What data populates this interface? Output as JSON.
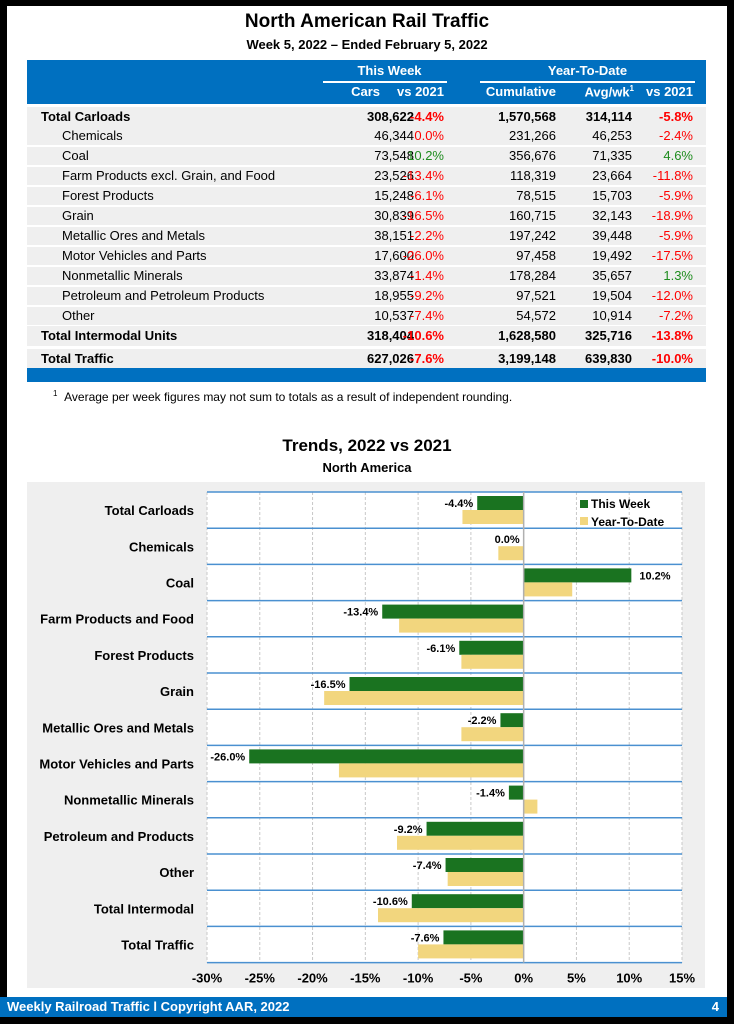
{
  "header": {
    "title": "North American Rail Traffic",
    "subtitle": "Week 5, 2022 – Ended February 5, 2022"
  },
  "table": {
    "group_this_week": "This Week",
    "group_ytd": "Year-To-Date",
    "columns": [
      "Cars",
      "vs 2021",
      "Cumulative",
      "Avg/wk",
      "vs 2021"
    ],
    "avg_footnote_marker": "1",
    "rows": [
      {
        "label": "Total Carloads",
        "bold": true,
        "cars": "308,622",
        "vs": "-4.4%",
        "cum": "1,570,568",
        "avg": "314,114",
        "ytdvs": "-5.8%"
      },
      {
        "label": "Chemicals",
        "bold": false,
        "cars": "46,344",
        "vs": "0.0%",
        "cum": "231,266",
        "avg": "46,253",
        "ytdvs": "-2.4%"
      },
      {
        "label": "Coal",
        "bold": false,
        "cars": "73,548",
        "vs": "10.2%",
        "cum": "356,676",
        "avg": "71,335",
        "ytdvs": "4.6%"
      },
      {
        "label": "Farm Products excl. Grain, and Food",
        "bold": false,
        "cars": "23,526",
        "vs": "-13.4%",
        "cum": "118,319",
        "avg": "23,664",
        "ytdvs": "-11.8%"
      },
      {
        "label": "Forest Products",
        "bold": false,
        "cars": "15,248",
        "vs": "-6.1%",
        "cum": "78,515",
        "avg": "15,703",
        "ytdvs": "-5.9%"
      },
      {
        "label": "Grain",
        "bold": false,
        "cars": "30,839",
        "vs": "-16.5%",
        "cum": "160,715",
        "avg": "32,143",
        "ytdvs": "-18.9%"
      },
      {
        "label": "Metallic Ores and Metals",
        "bold": false,
        "cars": "38,151",
        "vs": "-2.2%",
        "cum": "197,242",
        "avg": "39,448",
        "ytdvs": "-5.9%"
      },
      {
        "label": "Motor Vehicles and Parts",
        "bold": false,
        "cars": "17,600",
        "vs": "-26.0%",
        "cum": "97,458",
        "avg": "19,492",
        "ytdvs": "-17.5%"
      },
      {
        "label": "Nonmetallic Minerals",
        "bold": false,
        "cars": "33,874",
        "vs": "-1.4%",
        "cum": "178,284",
        "avg": "35,657",
        "ytdvs": "1.3%"
      },
      {
        "label": "Petroleum and Petroleum Products",
        "bold": false,
        "cars": "18,955",
        "vs": "-9.2%",
        "cum": "97,521",
        "avg": "19,504",
        "ytdvs": "-12.0%"
      },
      {
        "label": "Other",
        "bold": false,
        "cars": "10,537",
        "vs": "-7.4%",
        "cum": "54,572",
        "avg": "10,914",
        "ytdvs": "-7.2%"
      },
      {
        "label": "Total Intermodal Units",
        "bold": true,
        "cars": "318,404",
        "vs": "-10.6%",
        "cum": "1,628,580",
        "avg": "325,716",
        "ytdvs": "-13.8%"
      },
      {
        "label": "Total Traffic",
        "bold": true,
        "cars": "627,026",
        "vs": "-7.6%",
        "cum": "3,199,148",
        "avg": "639,830",
        "ytdvs": "-10.0%"
      }
    ],
    "footnote_marker": "1",
    "footnote": "Average per week figures may not sum to totals as a result of independent rounding."
  },
  "colors": {
    "brand_blue": "#0070c0",
    "negative": "#ff0000",
    "positive": "#1e8c1e",
    "this_week_bar": "#1a7320",
    "ytd_bar": "#f2d67e",
    "row_separator": "#4a90d0"
  },
  "chart_data": {
    "type": "bar",
    "orientation": "horizontal",
    "title": "Trends, 2022 vs 2021",
    "subtitle": "North America",
    "categories": [
      "Total Carloads",
      "Chemicals",
      "Coal",
      "Farm Products and Food",
      "Forest Products",
      "Grain",
      "Metallic Ores and Metals",
      "Motor Vehicles and Parts",
      "Nonmetallic Minerals",
      "Petroleum and Products",
      "Other",
      "Total Intermodal",
      "Total Traffic"
    ],
    "series": [
      {
        "name": "This Week",
        "values": [
          -4.4,
          0.0,
          10.2,
          -13.4,
          -6.1,
          -16.5,
          -2.2,
          -26.0,
          -1.4,
          -9.2,
          -7.4,
          -10.6,
          -7.6
        ],
        "labels": [
          "-4.4%",
          "0.0%",
          "10.2%",
          "-13.4%",
          "-6.1%",
          "-16.5%",
          "-2.2%",
          "-26.0%",
          "-1.4%",
          "-9.2%",
          "-7.4%",
          "-10.6%",
          "-7.6%"
        ]
      },
      {
        "name": "Year-To-Date",
        "values": [
          -5.8,
          -2.4,
          4.6,
          -11.8,
          -5.9,
          -18.9,
          -5.9,
          -17.5,
          1.3,
          -12.0,
          -7.2,
          -13.8,
          -10.0
        ]
      }
    ],
    "xlim": [
      -30,
      15
    ],
    "xticks": [
      -30,
      -25,
      -20,
      -15,
      -10,
      -5,
      0,
      5,
      10,
      15
    ],
    "xtick_labels": [
      "-30%",
      "-25%",
      "-20%",
      "-15%",
      "-10%",
      "-5%",
      "0%",
      "5%",
      "10%",
      "15%"
    ],
    "xlabel": "",
    "ylabel": "",
    "grid": true,
    "legend": "top-right"
  },
  "footer": {
    "text": "Weekly Railroad Traffic l Copyright AAR, 2022",
    "page": "4"
  }
}
